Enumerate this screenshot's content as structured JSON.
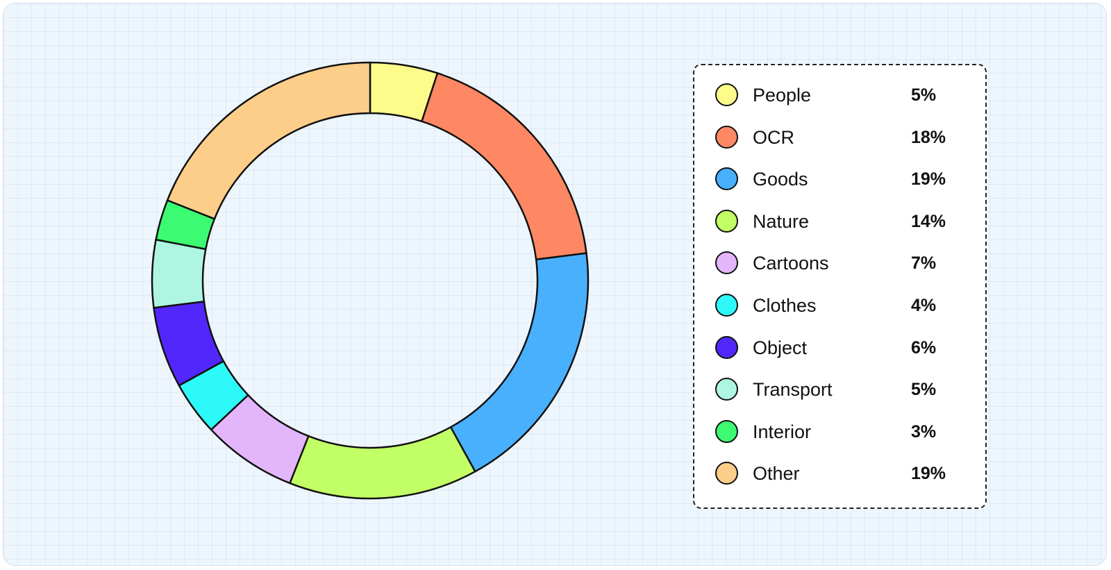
{
  "chart_data": {
    "type": "pie",
    "variant": "donut",
    "categories": [
      "People",
      "OCR",
      "Goods",
      "Nature",
      "Cartoons",
      "Clothes",
      "Object",
      "Transport",
      "Interior",
      "Other"
    ],
    "values": [
      5,
      18,
      19,
      14,
      7,
      4,
      6,
      5,
      3,
      19
    ],
    "value_labels": [
      "5%",
      "18%",
      "19%",
      "14%",
      "7%",
      "4%",
      "6%",
      "5%",
      "3%",
      "19%"
    ],
    "colors": [
      "#fdfc8a",
      "#ff8864",
      "#49b0fe",
      "#c2ff66",
      "#e3b6fb",
      "#2ef9f9",
      "#5227fb",
      "#aef6e1",
      "#3cfa72",
      "#fdce8a"
    ],
    "unit": "%",
    "legend_position": "right",
    "title": "",
    "grid": false
  }
}
